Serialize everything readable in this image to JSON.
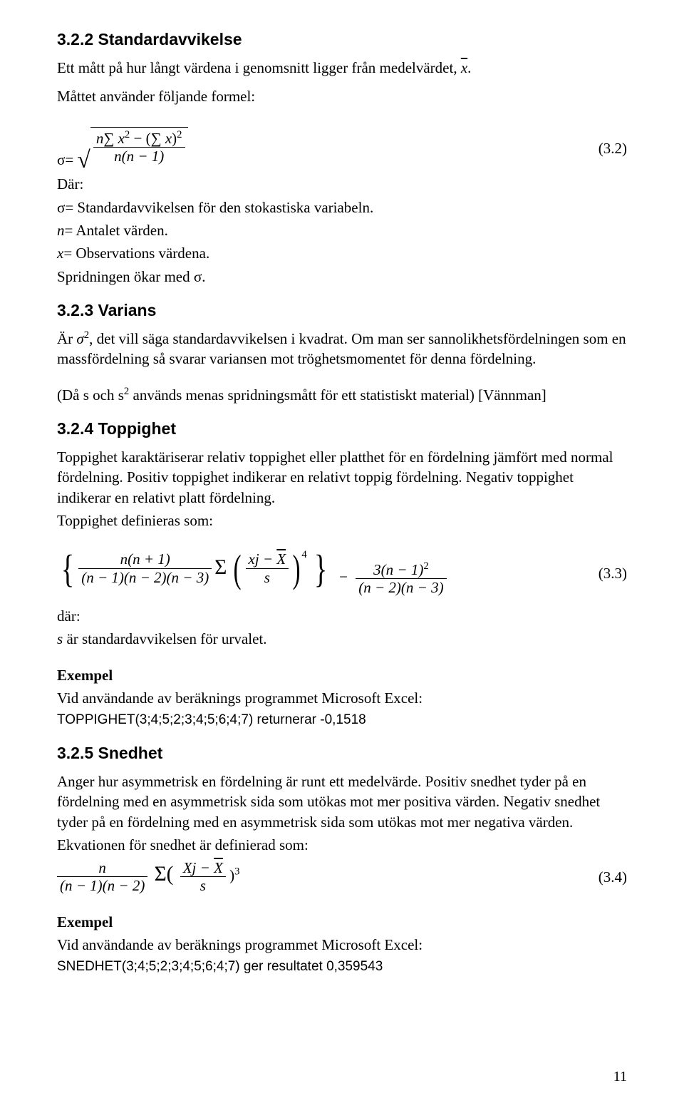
{
  "colors": {
    "text": "#000000",
    "background": "#ffffff",
    "rule": "#000000"
  },
  "typography": {
    "body_font": "Times New Roman",
    "heading_font": "Arial",
    "body_size_pt": 16,
    "heading_size_pt": 17,
    "tt_font": "Arial",
    "tt_size_pt": 14
  },
  "page_number": "11",
  "s322": {
    "heading": "3.2.2 Standardavvikelse",
    "intro_prefix": "Ett mått på hur långt värdena i genomsnitt ligger från medelvärdet, ",
    "intro_xbar": "x",
    "intro_suffix": ".",
    "line2": "Måttet använder följande formel:",
    "sigma_eq_left": "σ=",
    "eqnum": "(3.2)",
    "frac_num_prefix": "n",
    "frac_num_sum": "∑",
    "frac_num_x": "x",
    "frac_num_sq": "2",
    "frac_num_minus": " − (",
    "frac_num_sum2": "∑",
    "frac_num_x2": "x",
    "frac_num_close_sq": ")",
    "frac_num_outsq": "2",
    "frac_den": "n(n − 1)",
    "dar": "Där:",
    "def_sigma": "σ= Standardavvikelsen för den stokastiska variabeln.",
    "def_n_prefix": "",
    "def_n_ital": "n",
    "def_n_rest": "= Antalet värden.",
    "def_x_ital": "x",
    "def_x_rest": "= Observations värdena.",
    "spread": "Spridningen ökar med σ."
  },
  "s323": {
    "heading": "3.2.3 Varians",
    "l1_a": "Är ",
    "l1_sigma": "σ",
    "l1_sq": "2",
    "l1_b": ", det vill säga standardavvikelsen i kvadrat. Om man ser sannolikhetsfördelningen som en massfördelning så svarar variansen mot tröghetsmomentet för denna fördelning.",
    "l2_a": "(Då s och s",
    "l2_sup": "2",
    "l2_b": " används menas spridningsmått för ett statistiskt material) [Vännman]"
  },
  "s324": {
    "heading": "3.2.4 Toppighet",
    "p1": "Toppighet karaktäriserar relativ toppighet eller platthet för en fördelning jämfört med normal fördelning. Positiv toppighet indikerar en relativt toppig fördelning. Negativ toppighet indikerar en relativt platt fördelning.",
    "p2": "Toppighet definieras som:",
    "eq": {
      "frac1_num": "n(n + 1)",
      "frac1_den": "(n − 1)(n − 2)(n − 3)",
      "sigma": "Σ",
      "frac2_num_a": "xj − ",
      "frac2_num_xbar": "X",
      "frac2_den": "s",
      "power4": "4",
      "minus": "−",
      "frac3_num_a": "3(n − 1)",
      "frac3_num_sq": "2",
      "frac3_den": "(n − 2)(n − 3)",
      "eqnum": "(3.3)"
    },
    "dar": "där:",
    "def_s_ital": "s",
    "def_s_rest": " är standardavvikelsen för urvalet.",
    "ex_head": "Exempel",
    "ex_line1": "Vid användande av beräknings programmet Microsoft Excel:",
    "ex_tt": "TOPPIGHET(3;4;5;2;3;4;5;6;4;7) returnerar -0,1518"
  },
  "s325": {
    "heading": "3.2.5 Snedhet",
    "p1": "Anger hur asymmetrisk en fördelning är runt ett medelvärde. Positiv snedhet tyder på en fördelning med en asymmetrisk sida som utökas mot mer positiva värden. Negativ snedhet tyder på en fördelning med en asymmetrisk sida som utökas mot mer negativa värden.",
    "p2": "Ekvationen för snedhet är definierad som:",
    "eq": {
      "frac1_num": "n",
      "frac1_den": "(n − 1)(n − 2)",
      "sigma": "Σ(",
      "frac2_num_a": "Xj − ",
      "frac2_num_xbar": "X",
      "frac2_den": "s",
      "close_pow": ")",
      "power3": "3",
      "eqnum": "(3.4)"
    },
    "ex_head": "Exempel",
    "ex_line1": "Vid användande av beräknings programmet Microsoft Excel:",
    "ex_tt": "SNEDHET(3;4;5;2;3;4;5;6;4;7) ger resultatet 0,359543"
  }
}
